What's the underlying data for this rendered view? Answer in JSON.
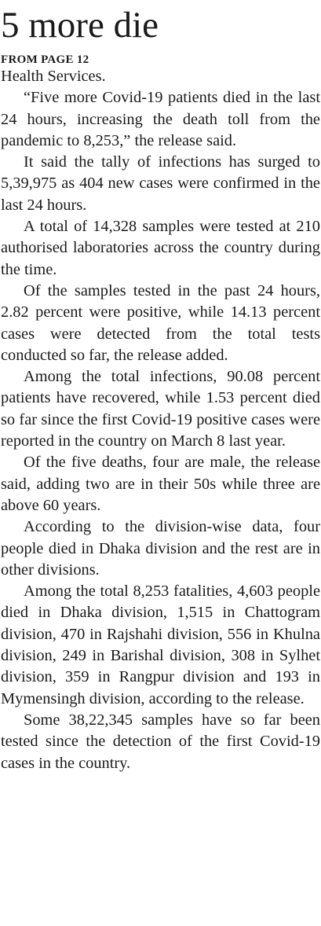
{
  "article": {
    "headline": "5 more die",
    "jump_line": "FROM PAGE 12",
    "paragraphs": [
      "Health Services.",
      "“Five more Covid-19 patients died in the last 24 hours, increasing the death toll from the pandemic to 8,253,” the release said.",
      "It said the tally of infections has surged to 5,39,975 as 404 new cases were confirmed in the last 24 hours.",
      "A total of 14,328 samples were tested at 210 authorised laboratories across the country during the time.",
      "Of the samples tested in the past 24 hours, 2.82 percent were positive, while 14.13 percent cases were detected from the total tests conducted so far, the release added.",
      "Among the total infections, 90.08 percent patients have recovered, while 1.53 percent died so far since the first Covid-19 positive cases were reported in the country on March 8 last year.",
      "Of the five deaths, four are male, the release said, adding two are in their 50s while three are above 60 years.",
      "According to the division-wise data, four people died in Dhaka division and the rest are in other divisions.",
      "Among the total 8,253 fatalities, 4,603 people died in Dhaka division, 1,515 in Chattogram division, 470 in Rajshahi division, 556 in Khulna division, 249 in Barishal division, 308 in Sylhet division, 359 in Rangpur division and 193 in Mymensingh division, according to the release.",
      "Some 38,22,345 samples have so far been tested since the detection of the first Covid-19 cases in the country."
    ]
  }
}
